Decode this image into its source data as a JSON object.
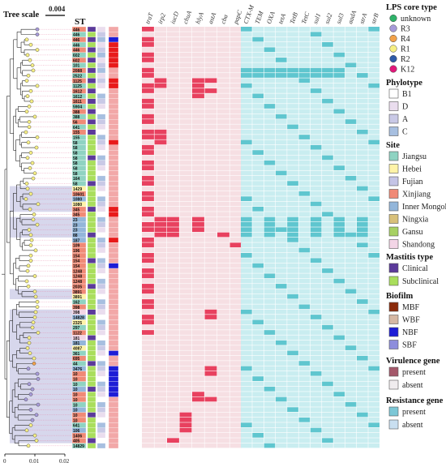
{
  "header": {
    "tree_scale_label": "Tree scale",
    "tree_scale_value": "0.004",
    "st_header": "ST"
  },
  "axis": {
    "ticks": [
      "0",
      "0.01",
      "0.02"
    ]
  },
  "colors": {
    "virulence_present": "#e8415f",
    "virulence_absent": "#f6dfe3",
    "resistance_present": "#5fc6cf",
    "resistance_absent": "#c9edf0"
  },
  "gene_labels": {
    "virulence": [
      "traT",
      "irp2",
      "iucD",
      "chuA",
      "hlyA",
      "astA",
      "cba",
      "papC"
    ],
    "resistance": [
      "CTX-M",
      "TEM",
      "OXA",
      "tetA",
      "TetB",
      "TetC",
      "sul1",
      "sul2",
      "sul3",
      "aadA",
      "strA",
      "strB"
    ]
  },
  "legend": {
    "lps_title": "LPS core type",
    "lps_items": [
      {
        "label": "unknown",
        "color": "#2fb36a"
      },
      {
        "label": "R3",
        "color": "#a79bd9"
      },
      {
        "label": "R4",
        "color": "#f2a24a"
      },
      {
        "label": "R1",
        "color": "#f6ef84"
      },
      {
        "label": "R2",
        "color": "#2d5aa8"
      },
      {
        "label": "K12",
        "color": "#e0187a"
      }
    ],
    "phylotype_title": "Phylotype",
    "phylotype_items": [
      {
        "label": "B1",
        "color": "#ffffff"
      },
      {
        "label": "D",
        "color": "#eaddee"
      },
      {
        "label": "A",
        "color": "#c9c9e6"
      },
      {
        "label": "C",
        "color": "#a7bfe0"
      }
    ],
    "site_title": "Site",
    "site_items": [
      {
        "label": "Jiangsu",
        "color": "#8fd3c2"
      },
      {
        "label": "Hebei",
        "color": "#fff3a8"
      },
      {
        "label": "Fujian",
        "color": "#c4c4e6"
      },
      {
        "label": "Xinjiang",
        "color": "#f08a76"
      },
      {
        "label": "Inner Mongolia",
        "color": "#93b6da"
      },
      {
        "label": "Ningxia",
        "color": "#d8c07a"
      },
      {
        "label": "Gansu",
        "color": "#a7d163"
      },
      {
        "label": "Shandong",
        "color": "#f3d5e6"
      }
    ],
    "mastitis_title": "Mastitis type",
    "mastitis_items": [
      {
        "label": "Clinical",
        "color": "#5b3a9a"
      },
      {
        "label": "Subclinical",
        "color": "#a9de5c"
      }
    ],
    "biofilm_title": "Biofilm",
    "biofilm_items": [
      {
        "label": "MBF",
        "color": "#8b2a0a"
      },
      {
        "label": "WBF",
        "color": "#d6b8a4"
      },
      {
        "label": "NBF",
        "color": "#1d1dd6"
      },
      {
        "label": "SBF",
        "color": "#8d8ddc"
      }
    ],
    "virulence_title": "Virulence gene",
    "virulence_items": [
      {
        "label": "present",
        "color": "#a4586a"
      },
      {
        "label": "absent",
        "color": "#f0ecee"
      }
    ],
    "resistance_title": "Resistance gene",
    "resistance_items": [
      {
        "label": "present",
        "color": "#7cc7d6"
      },
      {
        "label": "absent",
        "color": "#c9dff0"
      }
    ]
  },
  "st_values": [
    "446",
    "446",
    "446",
    "446",
    "446",
    "602",
    "602",
    "101",
    "2088",
    "2522",
    "1125",
    "1125",
    "1612",
    "1612",
    "1611",
    "5904",
    "388",
    "388",
    "56",
    "641",
    "155",
    "155",
    "58",
    "58",
    "58",
    "58",
    "58",
    "58",
    "58",
    "164",
    "58",
    "1429",
    "10601",
    "1080",
    "1080",
    "345",
    "345",
    "23",
    "23",
    "23",
    "88",
    "187",
    "109",
    "196",
    "154",
    "154",
    "154",
    "1248",
    "1248",
    "1248",
    "2035",
    "3891",
    "3891",
    "162",
    "398",
    "398",
    "14828",
    "2325",
    "297",
    "1122",
    "181",
    "181",
    "4087",
    "361",
    "695",
    "44",
    "3476",
    "10",
    "10",
    "10",
    "10",
    "10",
    "10",
    "10",
    "10",
    "10",
    "10",
    "641",
    "106",
    "1406",
    "405",
    "14829"
  ]
}
